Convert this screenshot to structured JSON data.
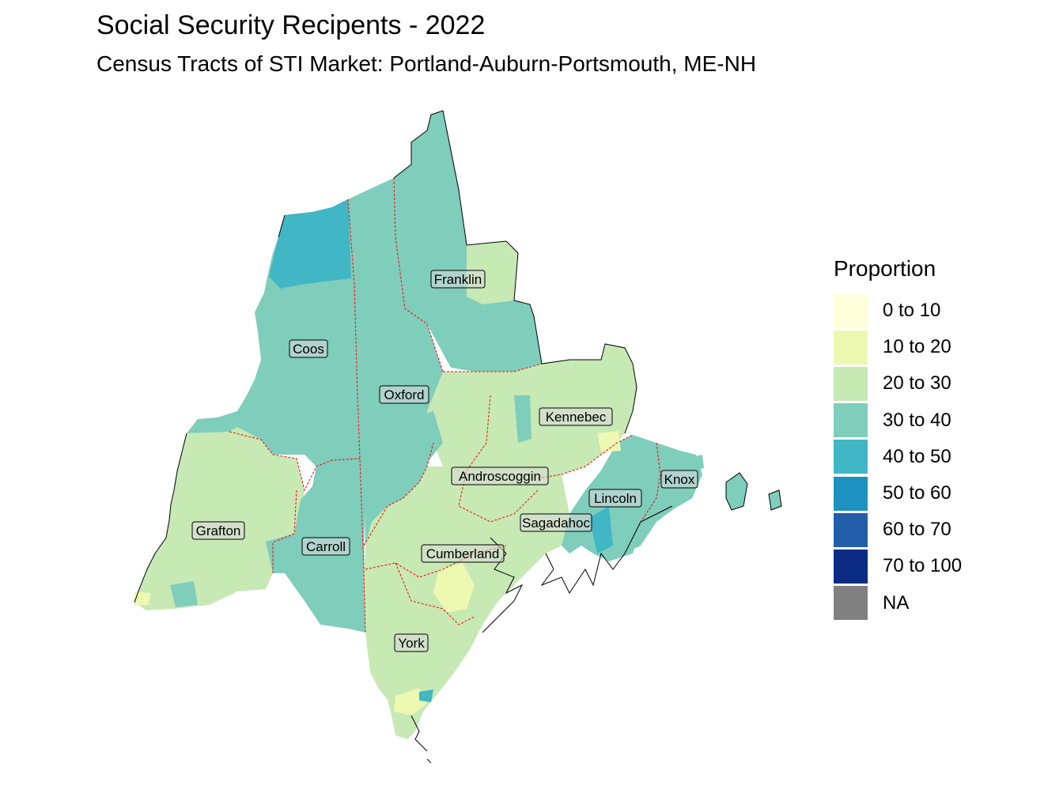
{
  "title": "Social Security Recipents - 2022",
  "subtitle": "Census Tracts of STI Market: Portland-Auburn-Portsmouth, ME-NH",
  "legend": {
    "title": "Proportion",
    "items": [
      {
        "label": "0 to 10",
        "color": "#ffffd9"
      },
      {
        "label": "10 to 20",
        "color": "#edf8b1"
      },
      {
        "label": "20 to 30",
        "color": "#c7e9b4"
      },
      {
        "label": "30 to 40",
        "color": "#7fcdbb"
      },
      {
        "label": "40 to 50",
        "color": "#41b6c4"
      },
      {
        "label": "50 to 60",
        "color": "#1d91c0"
      },
      {
        "label": "60 to 70",
        "color": "#225ea8"
      },
      {
        "label": "70 to 100",
        "color": "#0c2c84"
      },
      {
        "label": "NA",
        "color": "#808080"
      }
    ]
  },
  "counties": [
    {
      "name": "Coos",
      "color_class": "30 to 40"
    },
    {
      "name": "Franklin",
      "color_class": "30 to 40"
    },
    {
      "name": "Oxford",
      "color_class": "30 to 40"
    },
    {
      "name": "Kennebec",
      "color_class": "20 to 30"
    },
    {
      "name": "Androscoggin",
      "color_class": "20 to 30"
    },
    {
      "name": "Lincoln",
      "color_class": "30 to 40"
    },
    {
      "name": "Knox",
      "color_class": "30 to 40"
    },
    {
      "name": "Sagadahoc",
      "color_class": "20 to 30"
    },
    {
      "name": "Grafton",
      "color_class": "20 to 30"
    },
    {
      "name": "Carroll",
      "color_class": "30 to 40"
    },
    {
      "name": "Cumberland",
      "color_class": "20 to 30"
    },
    {
      "name": "York",
      "color_class": "20 to 30"
    }
  ]
}
